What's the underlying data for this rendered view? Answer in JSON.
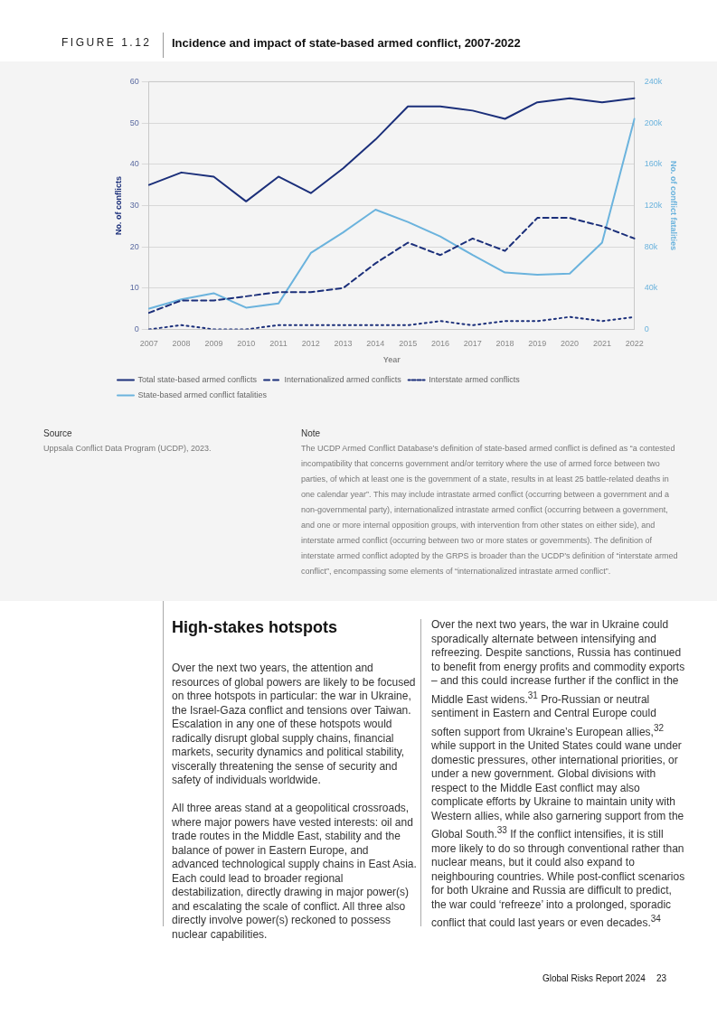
{
  "chart_data": {
    "type": "line",
    "subtitle": "FIGURE 1.12",
    "title": "Incidence and impact of state-based armed conflict, 2007-2022",
    "xlabel": "Year",
    "ylabel": "No. of conflicts",
    "y2label": "No. of conflict fatalities",
    "categories": [
      "2007",
      "2008",
      "2009",
      "2010",
      "2011",
      "2012",
      "2013",
      "2014",
      "2015",
      "2016",
      "2017",
      "2018",
      "2019",
      "2020",
      "2021",
      "2022"
    ],
    "series": [
      {
        "name": "Total state-based armed conflicts",
        "color": "#1b2f7a",
        "line_style": "solid",
        "values": [
          35,
          38,
          37,
          31,
          37,
          33,
          39,
          46,
          54,
          54,
          53,
          51,
          55,
          56,
          55,
          56
        ]
      },
      {
        "name": "Internationalized armed conflicts",
        "color": "#1b2f7a",
        "line_style": "dashed",
        "values": [
          4,
          7,
          7,
          8,
          9,
          9,
          10,
          16,
          21,
          18,
          22,
          19,
          27,
          27,
          25,
          22
        ]
      },
      {
        "name": "Interstate armed conflicts",
        "color": "#1b2f7a",
        "line_style": "dotted",
        "values": [
          0,
          1,
          0,
          0,
          1,
          1,
          1,
          1,
          1,
          2,
          1,
          2,
          2,
          3,
          2,
          3
        ]
      },
      {
        "name": "State-based armed conflict fatalities",
        "color": "#6bb3dd",
        "line_style": "solid",
        "axis": "y2",
        "values": [
          20000,
          29000,
          35000,
          21000,
          25000,
          74000,
          94000,
          116000,
          104000,
          90000,
          72000,
          55000,
          53000,
          54000,
          84000,
          204000
        ]
      }
    ],
    "ylim": [
      0,
      60
    ],
    "yticks": [
      0,
      10,
      20,
      30,
      40,
      50,
      60
    ],
    "y2lim": [
      0,
      240000
    ],
    "y2ticks": [
      {
        "value": 0,
        "label": "0"
      },
      {
        "value": 40000,
        "label": "40k"
      },
      {
        "value": 80000,
        "label": "80k"
      },
      {
        "value": 120000,
        "label": "120k"
      },
      {
        "value": 160000,
        "label": "160k"
      },
      {
        "value": 200000,
        "label": "200k"
      },
      {
        "value": 240000,
        "label": "240k"
      }
    ],
    "grid": "y",
    "legend": "bottom",
    "marker": "none",
    "annotations": [
      "Source",
      "Uppsala Conflict Data Program (UCDP), 2023.",
      "Note",
      "The UCDP Armed Conflict Database’s definition of state-based armed conflict is defined as “a contested incompatibility that concerns government and/or territory where the use of armed force between two parties, of which at least one is the government of a state, results in at least 25 battle-related deaths in one calendar year”. This may include intrastate armed conflict (occurring between a government and a non-governmental party), internationalized intrastate armed conflict (occurring between a government, and one or more internal opposition groups, with intervention from other states on either side), and interstate armed conflict (occurring between two or more states or governments). The definition of interstate armed conflict adopted by the GRPS is broader than the UCDP’s definition of “interstate armed conflict”, encompassing some elements of “internationalized intrastate armed conflict”.",
      "High-stakes hotspots",
      "Over the next two years, the attention and resources of global powers are likely to be focused on three hotspots in particular: the war in Ukraine, the Israel-Gaza conflict and tensions over Taiwan. Escalation in any one of these hotspots would radically disrupt global supply chains, financial markets, security dynamics and political stability, viscerally threatening the sense of security and safety of individuals worldwide.",
      "All three areas stand at a geopolitical crossroads, where major powers have vested interests: oil and trade routes in the Middle East, stability and the balance of power in Eastern Europe, and advanced technological supply chains in East Asia. Each could lead to broader regional destabilization, directly drawing in major power(s) and escalating the scale of conflict. All three also directly involve power(s) reckoned to possess nuclear capabilities.",
      "Over the next two years, the war in Ukraine could sporadically alternate between intensifying and refreezing. Despite sanctions, Russia has continued to benefit from energy profits and commodity exports – and this could increase further if the conflict in the Middle East widens.$^{31}$ Pro-Russian or neutral sentiment in Eastern and Central Europe could soften support from Ukraine’s European allies,$^{32}$ while support in the United States could wane under domestic pressures, other international priorities, or under a new government. Global divisions with respect to the Middle East conflict may also complicate efforts by Ukraine to maintain unity with Western allies, while also garnering support from the Global South.$^{33}$ If the conflict intensifies, it is still more likely to do so through conventional rather than nuclear means, but it could also expand to neighbouring countries. While post-conflict scenarios for both Ukraine and Russia are difficult to predict, the war could ‘refreeze’ into a prolonged, sporadic conflict that could last years or even decades.$^{34}$",
      "Global Risks Report 2024",
      "23"
    ]
  }
}
